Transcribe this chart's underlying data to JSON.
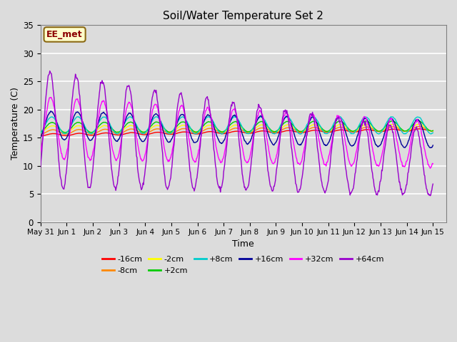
{
  "title": "Soil/Water Temperature Set 2",
  "xlabel": "Time",
  "ylabel": "Temperature (C)",
  "ylim": [
    0,
    35
  ],
  "xlim_days": [
    0,
    15.5
  ],
  "x_tick_labels": [
    "May 31",
    "Jun 1",
    "Jun 2",
    "Jun 3",
    "Jun 4",
    "Jun 5",
    "Jun 6",
    "Jun 7",
    "Jun 8",
    "Jun 9",
    "Jun 10",
    "Jun 11",
    "Jun 12",
    "Jun 13",
    "Jun 14",
    "Jun 15"
  ],
  "yticks": [
    0,
    5,
    10,
    15,
    20,
    25,
    30,
    35
  ],
  "annotation_text": "EE_met",
  "background_color": "#dcdcdc",
  "plot_bg_color": "#dcdcdc",
  "grid_color": "white",
  "series": [
    {
      "label": "-16cm",
      "color": "#ff0000",
      "base": 15.5,
      "amplitude": 0.2,
      "phase": -1.5,
      "decay": 0.0,
      "trend": 0.003
    },
    {
      "label": "-8cm",
      "color": "#ff8800",
      "base": 16.0,
      "amplitude": 0.4,
      "phase": -1.4,
      "decay": 0.0,
      "trend": 0.002
    },
    {
      "label": "-2cm",
      "color": "#ffff00",
      "base": 16.5,
      "amplitude": 0.6,
      "phase": -1.3,
      "decay": 0.0,
      "trend": 0.001
    },
    {
      "label": "+2cm",
      "color": "#00cc00",
      "base": 16.8,
      "amplitude": 0.9,
      "phase": -1.2,
      "decay": 0.0,
      "trend": 0.001
    },
    {
      "label": "+8cm",
      "color": "#00cccc",
      "base": 17.2,
      "amplitude": 1.5,
      "phase": -1.1,
      "decay": 0.0,
      "trend": 0.0
    },
    {
      "label": "+16cm",
      "color": "#000099",
      "base": 17.2,
      "amplitude": 2.5,
      "phase": -1.0,
      "decay": 0.0,
      "trend": -0.005
    },
    {
      "label": "+32cm",
      "color": "#ff00ff",
      "base": 16.8,
      "amplitude": 5.5,
      "phase": -0.9,
      "decay": 0.02,
      "trend": -0.01
    },
    {
      "label": "+64cm",
      "color": "#9900cc",
      "base": 16.5,
      "amplitude": 10.5,
      "phase": -0.7,
      "decay": 0.04,
      "trend": -0.02
    }
  ]
}
